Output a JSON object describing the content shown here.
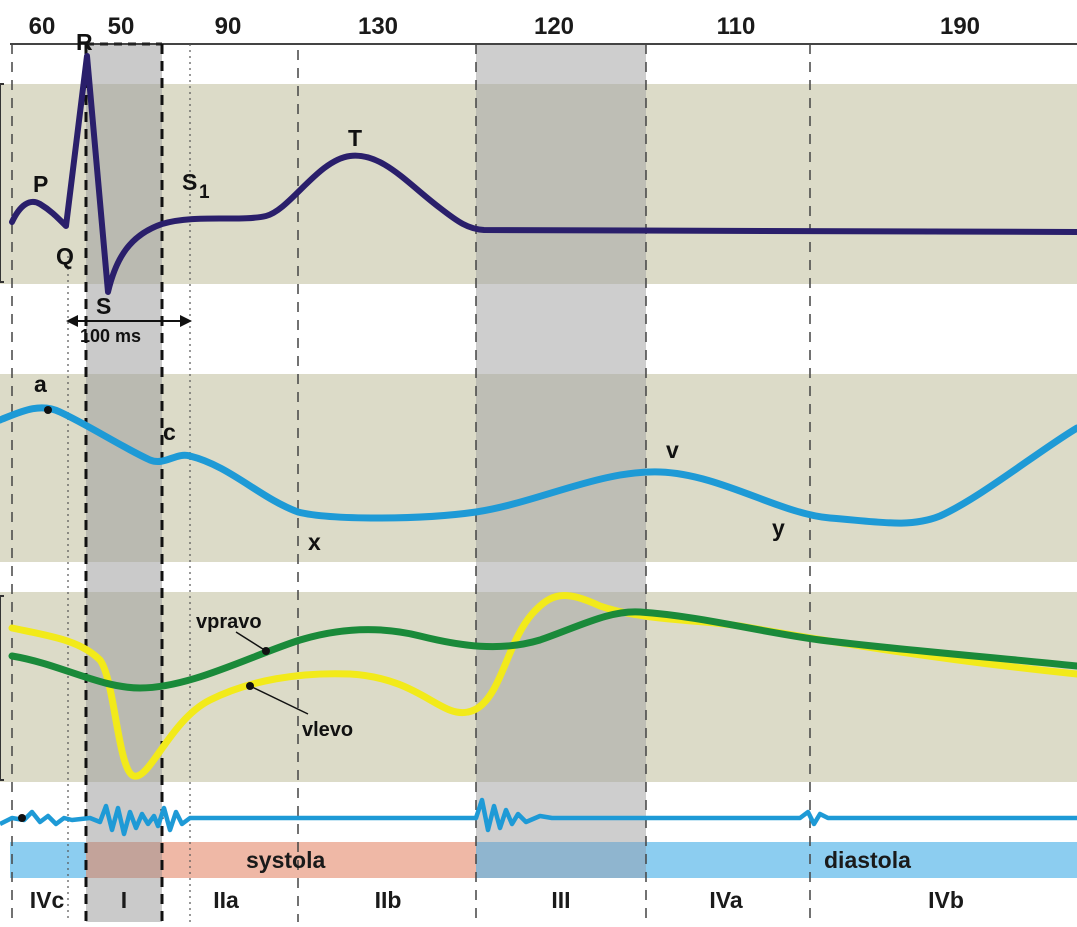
{
  "durations": [
    "60",
    "50",
    "90",
    "130",
    "120",
    "110",
    "190"
  ],
  "ecg": {
    "labels": {
      "P": "P",
      "Q": "Q",
      "R": "R",
      "S": "S",
      "T": "T",
      "S1": "S",
      "S1_sub": "1"
    },
    "interval_label": "100 ms",
    "color": "#2a1f6b"
  },
  "venous": {
    "labels": {
      "a": "a",
      "c": "c",
      "v": "v",
      "x": "x",
      "y": "y"
    },
    "color": "#1e9ad6"
  },
  "volume": {
    "right_label": "vpravo",
    "left_label": "vlevo",
    "right_color": "#1a8a3a",
    "left_color": "#f2ea1a"
  },
  "phonocardiogram": {
    "color": "#1e9ad6"
  },
  "cycle": {
    "systole": "systola",
    "diastole": "diastola",
    "systole_color": "#efb8a6",
    "diastole_color": "#8ccdf0"
  },
  "phases": [
    "IVc",
    "I",
    "IIa",
    "IIb",
    "III",
    "IVa",
    "IVb"
  ],
  "colors": {
    "band": "#dcdbc8",
    "shade_dark": "#b0b0b0",
    "shade_light": "#d4d4d4"
  }
}
